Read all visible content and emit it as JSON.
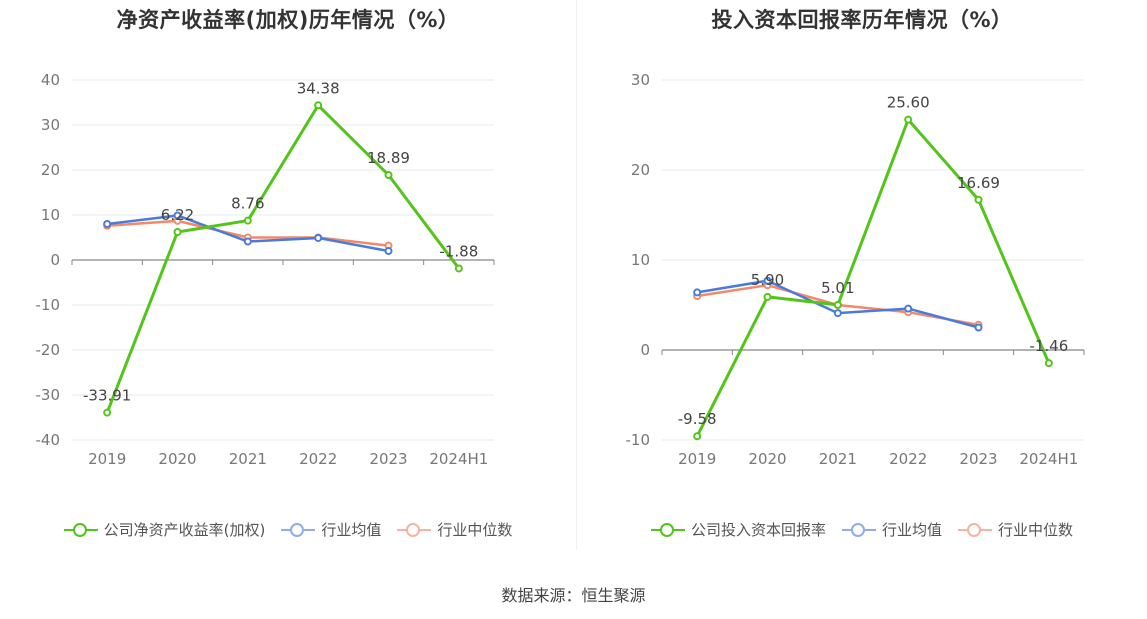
{
  "colors": {
    "company": "#52c41a",
    "avg": "#4a7bdc",
    "median": "#f08a68",
    "legend_avg": "#8fadec",
    "legend_median": "#f6b4a0"
  },
  "source": "数据来源：恒生聚源",
  "chart_data": [
    {
      "type": "line",
      "title": "净资产收益率(加权)历年情况（%）",
      "categories": [
        "2019",
        "2020",
        "2021",
        "2022",
        "2023",
        "2024H1"
      ],
      "ylim": [
        -40,
        40
      ],
      "yticks": [
        40,
        30,
        20,
        10,
        0,
        -10,
        -20,
        -30,
        -40
      ],
      "ytick_labels": [
        "40",
        "30",
        "20",
        "10",
        "0",
        "-10",
        "-20",
        "-30",
        "-40"
      ],
      "grid": true,
      "legend_position": "bottom",
      "series": [
        {
          "name": "公司净资产收益率(加权)",
          "values": [
            -33.91,
            6.22,
            8.76,
            34.38,
            18.89,
            -1.88
          ],
          "labels": [
            "-33.91",
            "6.22",
            "8.76",
            "34.38",
            "18.89",
            "-1.88"
          ]
        },
        {
          "name": "行业均值",
          "values": [
            8.0,
            9.9,
            4.1,
            4.9,
            2.0,
            null
          ]
        },
        {
          "name": "行业中位数",
          "values": [
            7.6,
            8.7,
            5.0,
            5.0,
            3.2,
            null
          ]
        }
      ]
    },
    {
      "type": "line",
      "title": "投入资本回报率历年情况（%）",
      "categories": [
        "2019",
        "2020",
        "2021",
        "2022",
        "2023",
        "2024H1"
      ],
      "ylim": [
        -10,
        30
      ],
      "yticks": [
        30,
        20,
        10,
        0,
        -10
      ],
      "ytick_labels": [
        "30",
        "20",
        "10",
        "0",
        "-10"
      ],
      "grid": true,
      "legend_position": "bottom",
      "series": [
        {
          "name": "公司投入资本回报率",
          "values": [
            -9.58,
            5.9,
            5.01,
            25.6,
            16.69,
            -1.46
          ],
          "labels": [
            "-9.58",
            "5.90",
            "5.01",
            "25.60",
            "16.69",
            "-1.46"
          ]
        },
        {
          "name": "行业均值",
          "values": [
            6.4,
            7.7,
            4.1,
            4.6,
            2.5,
            null
          ]
        },
        {
          "name": "行业中位数",
          "values": [
            6.0,
            7.2,
            5.0,
            4.2,
            2.8,
            null
          ]
        }
      ]
    }
  ]
}
